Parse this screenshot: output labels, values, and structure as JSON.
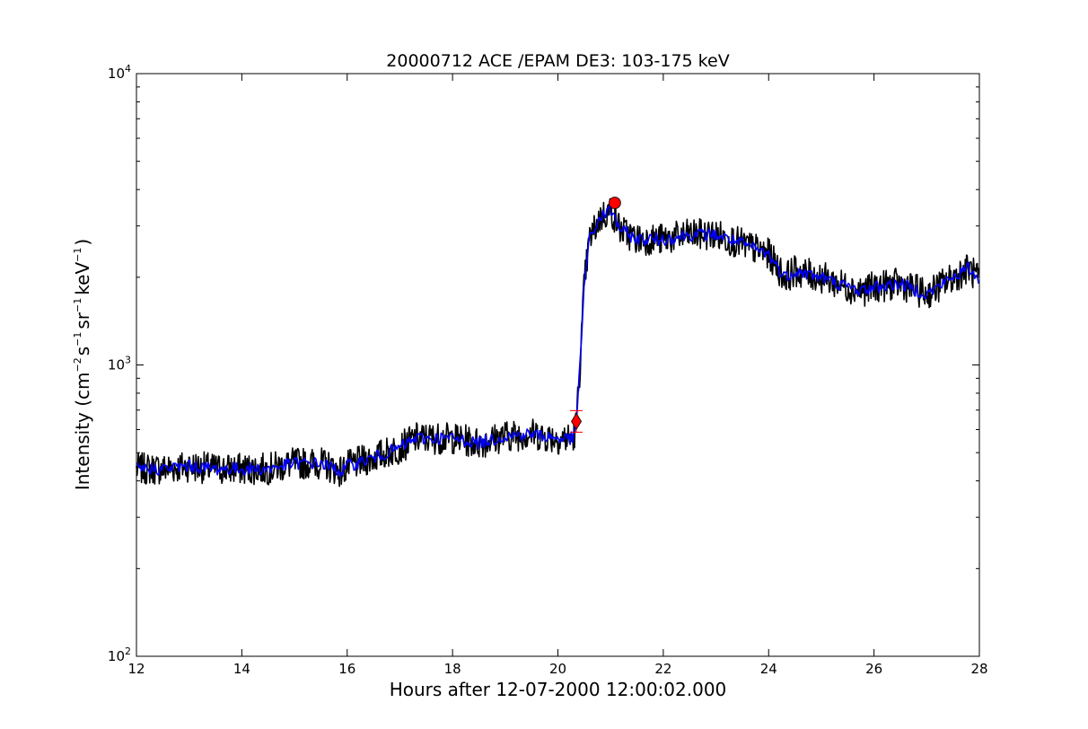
{
  "chart_data": {
    "type": "line",
    "title": "20000712 ACE /EPAM DE3: 103-175 keV",
    "xlabel": "Hours after 12-07-2000 12:00:02.000",
    "ylabel": {
      "prefix": "Intensity (cm",
      "exp1": "−2",
      "part2": "s",
      "exp2": "−1",
      "part3": "sr",
      "exp3": "−1",
      "part4": "keV",
      "exp4": "−1",
      "suffix": ")"
    },
    "xlim": [
      12,
      28
    ],
    "ylim": [
      100,
      10000
    ],
    "yscale": "log",
    "x_ticks": [
      12,
      14,
      16,
      18,
      20,
      22,
      24,
      26,
      28
    ],
    "y_ticks": [
      {
        "value": 100,
        "base": "10",
        "exp": "2"
      },
      {
        "value": 1000,
        "base": "10",
        "exp": "3"
      },
      {
        "value": 10000,
        "base": "10",
        "exp": "4"
      }
    ],
    "series": [
      {
        "color": "#000000",
        "x": [
          12.0,
          12.5,
          13.0,
          13.5,
          14.0,
          14.5,
          15.0,
          15.5,
          15.9,
          16.0,
          16.5,
          17.0,
          17.3,
          17.5,
          18.0,
          18.5,
          19.0,
          19.5,
          20.0,
          20.3,
          20.35,
          20.42,
          20.5,
          20.6,
          20.8,
          21.0,
          21.2,
          21.5,
          22.0,
          22.5,
          23.0,
          23.5,
          24.0,
          24.3,
          24.5,
          25.0,
          25.5,
          25.8,
          26.0,
          26.5,
          27.0,
          27.5,
          27.8,
          28.0
        ],
        "y": [
          440,
          440,
          450,
          440,
          440,
          440,
          460,
          460,
          430,
          450,
          480,
          520,
          560,
          560,
          560,
          540,
          570,
          580,
          560,
          560,
          640,
          1000,
          1900,
          2700,
          3200,
          3400,
          2900,
          2700,
          2700,
          2800,
          2800,
          2600,
          2400,
          2000,
          2100,
          2000,
          1850,
          1800,
          1850,
          1900,
          1750,
          2000,
          2150,
          1950
        ]
      },
      {
        "color": "#0000ff",
        "x": [
          12.0,
          12.5,
          13.0,
          13.5,
          14.0,
          14.5,
          15.0,
          15.5,
          15.9,
          16.0,
          16.5,
          17.0,
          17.3,
          17.5,
          18.0,
          18.5,
          19.0,
          19.5,
          20.0,
          20.3,
          20.35,
          20.42,
          20.5,
          20.6,
          20.8,
          21.0,
          21.2,
          21.5,
          22.0,
          22.5,
          23.0,
          23.5,
          24.0,
          24.3,
          24.5,
          25.0,
          25.5,
          25.8,
          26.0,
          26.5,
          27.0,
          27.5,
          27.8,
          28.0
        ],
        "y": [
          440,
          440,
          450,
          440,
          440,
          440,
          460,
          460,
          430,
          450,
          480,
          520,
          560,
          560,
          560,
          540,
          570,
          580,
          560,
          560,
          640,
          1000,
          1900,
          2700,
          3200,
          3400,
          2900,
          2700,
          2700,
          2800,
          2800,
          2600,
          2400,
          2000,
          2100,
          2000,
          1850,
          1800,
          1850,
          1900,
          1750,
          2000,
          2150,
          1950
        ]
      }
    ],
    "markers": [
      {
        "shape": "diamond",
        "x": 20.35,
        "y": 640,
        "color": "#ff0000"
      },
      {
        "shape": "circle",
        "x": 21.08,
        "y": 3600,
        "color": "#ff0000"
      }
    ],
    "grid": false,
    "legend": "none"
  }
}
